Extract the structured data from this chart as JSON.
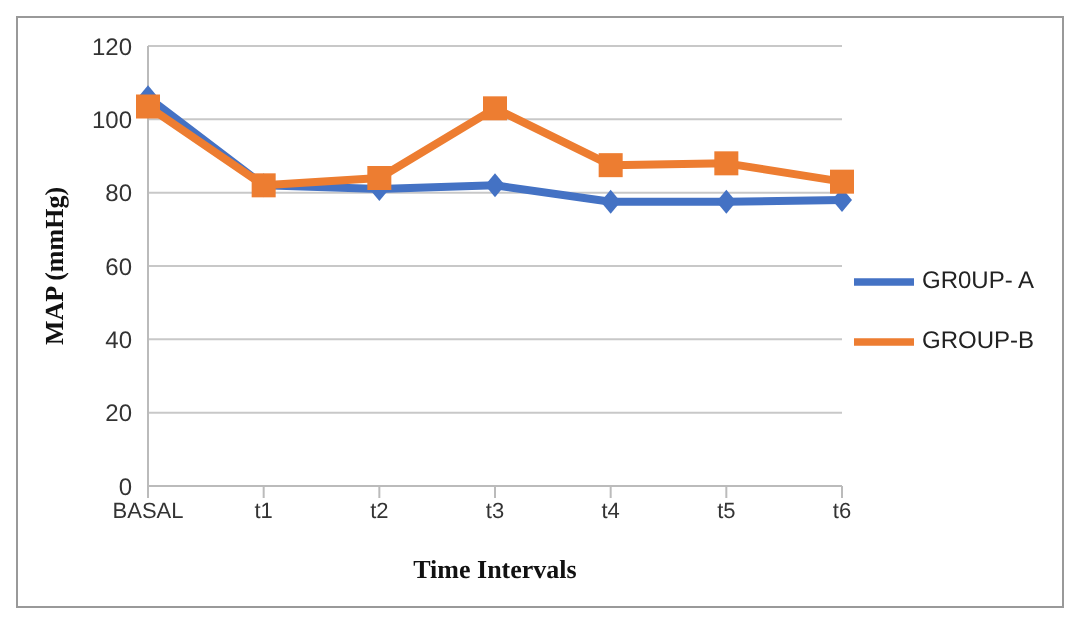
{
  "chart_data": {
    "type": "line",
    "xlabel": "Time Intervals",
    "ylabel": "MAP (mmHg)",
    "categories": [
      "BASAL",
      "t1",
      "t2",
      "t3",
      "t4",
      "t5",
      "t6"
    ],
    "series": [
      {
        "name": "GR0UP- A",
        "color": "#4472c4",
        "marker": "diamond",
        "values": [
          106,
          82,
          81,
          82,
          77.5,
          77.5,
          78
        ]
      },
      {
        "name": "GROUP-B",
        "color": "#ed7d31",
        "marker": "square",
        "values": [
          103.5,
          82,
          84,
          103,
          87.5,
          88,
          83
        ]
      }
    ],
    "ylim": [
      0,
      120
    ],
    "yticks": [
      0,
      20,
      40,
      60,
      80,
      100,
      120
    ],
    "grid": "y",
    "legend": "right",
    "line_style": "solid"
  }
}
